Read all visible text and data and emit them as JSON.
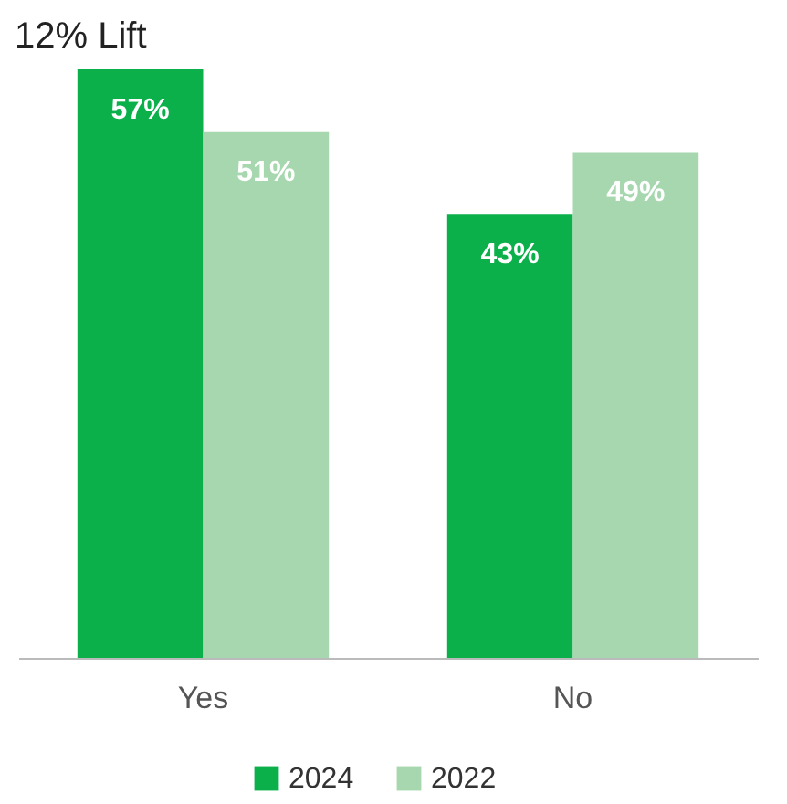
{
  "chart_data": {
    "type": "bar",
    "categories": [
      "Yes",
      "No"
    ],
    "series": [
      {
        "name": "2024",
        "color": "#0bb04b",
        "values": [
          57,
          43
        ],
        "value_labels": [
          "57%",
          "43%"
        ]
      },
      {
        "name": "2022",
        "color": "#a6d7ae",
        "values": [
          51,
          49
        ],
        "value_labels": [
          "51%",
          "49%"
        ]
      }
    ],
    "annotations": [
      "12% Lift"
    ],
    "legend": "bottom",
    "grid": false
  }
}
